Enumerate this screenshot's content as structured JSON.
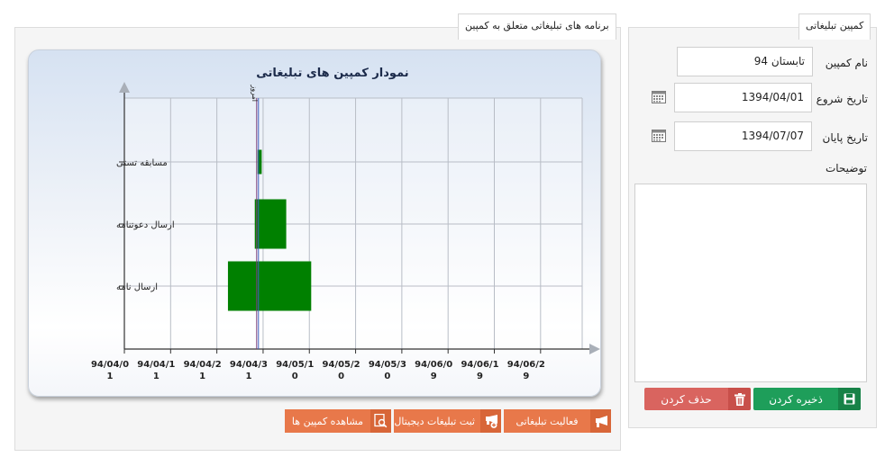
{
  "form": {
    "tab_label": "کمپین تبلیغاتی",
    "name_label": "نام کمپین",
    "name_value": "تابستان 94",
    "start_label": "تاریخ شروع",
    "start_value": "1394/04/01",
    "end_label": "تاریخ پایان",
    "end_value": "1394/07/07",
    "desc_label": "توضیحات",
    "desc_value": "",
    "save_label": "ذخیره کردن",
    "delete_label": "حذف کردن"
  },
  "chart_panel": {
    "tab_label": "برنامه های تبلیغاتی متعلق به کمپین"
  },
  "actions": {
    "activity_label": "فعالیت تبلیغاتی",
    "digital_label": "ثبت تبلیغات دیجیتال",
    "view_label": "مشاهده کمپین ها"
  },
  "colors": {
    "bar": "#008000",
    "today_line": "#8b2a8b",
    "save": "#1e9e5a",
    "delete": "#d9645f",
    "action": "#e8784a",
    "title": "#1b2a4a"
  },
  "chart_data": {
    "type": "gantt",
    "title": "نمودار کمپین های تبلیغاتی",
    "today_label": "امروز",
    "x_ticks": [
      [
        "94/04/0",
        "1"
      ],
      [
        "94/04/1",
        "1"
      ],
      [
        "94/04/2",
        "1"
      ],
      [
        "94/04/3",
        "1"
      ],
      [
        "94/05/1",
        "0"
      ],
      [
        "94/05/2",
        "0"
      ],
      [
        "94/05/3",
        "0"
      ],
      [
        "94/06/0",
        "9"
      ],
      [
        "94/06/1",
        "9"
      ],
      [
        "94/06/2",
        "9"
      ]
    ],
    "x_tick_days": [
      0,
      10,
      20,
      30,
      40,
      50,
      60,
      70,
      80,
      90
    ],
    "x_range_days": [
      0,
      99
    ],
    "today_day": 28.8,
    "tasks": [
      {
        "name": "مسابقه تستی",
        "start_day": 28.8,
        "end_day": 29.7
      },
      {
        "name": "ارسال دعوتنامه",
        "start_day": 28.2,
        "end_day": 35.0
      },
      {
        "name": "ارسال نامه",
        "start_day": 22.4,
        "end_day": 40.4
      }
    ],
    "grid": true
  }
}
